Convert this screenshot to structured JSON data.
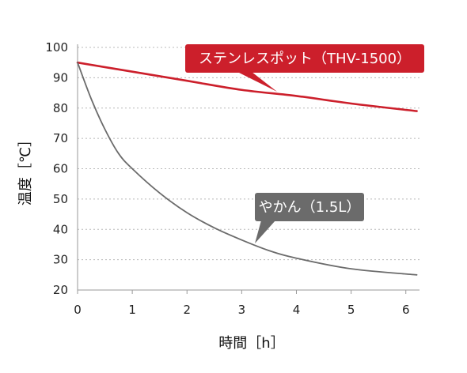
{
  "chart_data": {
    "type": "line",
    "title": "",
    "xlabel": "時間［h］",
    "ylabel": "温度［℃］",
    "xlim": [
      0,
      6.25
    ],
    "ylim": [
      20,
      100
    ],
    "x_ticks": [
      0,
      1,
      2,
      3,
      4,
      5,
      6
    ],
    "y_ticks": [
      20,
      30,
      40,
      50,
      60,
      70,
      80,
      90,
      100
    ],
    "grid": "horizontal-dotted",
    "legend": "callouts",
    "series": [
      {
        "name": "ステンレスポット（THV-1500）",
        "color": "#cc1f2b",
        "x": [
          0,
          1,
          2,
          3,
          4,
          5,
          6.2
        ],
        "y": [
          95,
          92,
          89,
          86,
          84,
          81.5,
          79
        ]
      },
      {
        "name": "やかん（1.5L）",
        "color": "#6b6b6b",
        "x": [
          0,
          0.25,
          0.5,
          0.75,
          1,
          1.5,
          2,
          2.5,
          3,
          3.5,
          4,
          5,
          6.2
        ],
        "y": [
          95,
          83,
          73,
          65,
          60,
          52,
          45.5,
          40.5,
          36.5,
          33,
          30.5,
          27,
          25
        ]
      }
    ]
  }
}
